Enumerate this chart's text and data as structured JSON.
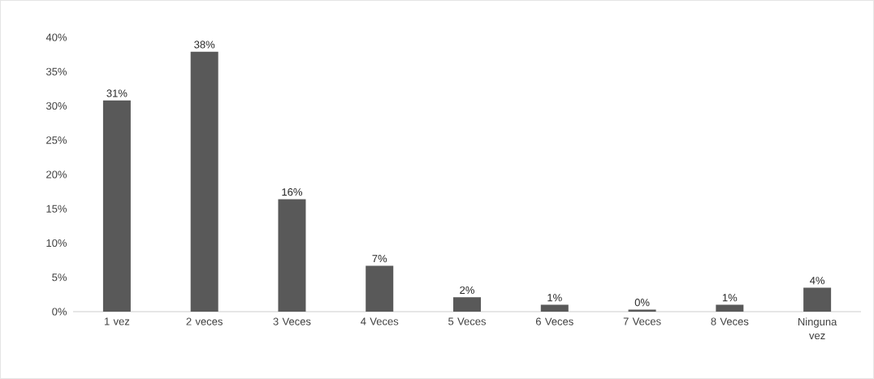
{
  "chart_data": {
    "type": "bar",
    "categories": [
      "1 vez",
      "2 veces",
      "3 Veces",
      "4 Veces",
      "5 Veces",
      "6 Veces",
      "7 Veces",
      "8 Veces",
      "Ninguna vez"
    ],
    "values": [
      30.8,
      37.9,
      16.4,
      6.7,
      2.1,
      1.0,
      0.3,
      1.0,
      3.5
    ],
    "value_labels": [
      "31%",
      "38%",
      "16%",
      "7%",
      "2%",
      "1%",
      "0%",
      "1%",
      "4%"
    ],
    "color": "#595959",
    "ylim": [
      0,
      40
    ],
    "yticks": [
      {
        "value": 0,
        "label": "0%"
      },
      {
        "value": 5,
        "label": "5%"
      },
      {
        "value": 10,
        "label": "10%"
      },
      {
        "value": 15,
        "label": "15%"
      },
      {
        "value": 20,
        "label": "20%"
      },
      {
        "value": 25,
        "label": "25%"
      },
      {
        "value": 30,
        "label": "30%"
      },
      {
        "value": 35,
        "label": "35%"
      },
      {
        "value": 40,
        "label": "40%"
      }
    ],
    "legend": false
  }
}
